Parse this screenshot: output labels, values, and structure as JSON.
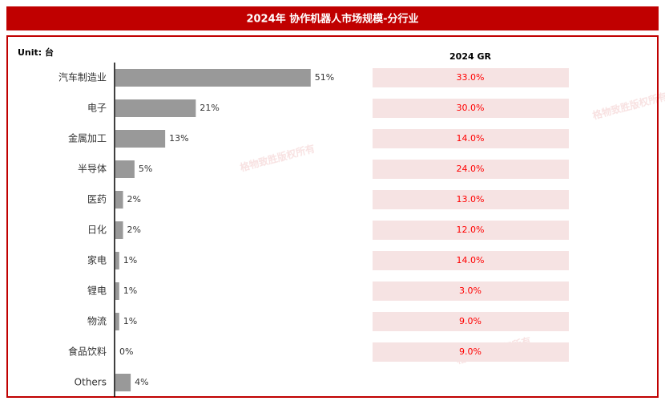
{
  "chart_data": {
    "type": "bar",
    "title": "2024年 协作机器人市场规模-分行业",
    "unit_label": "Unit: 台",
    "categories": [
      "汽车制造业",
      "电子",
      "金属加工",
      "半导体",
      "医药",
      "日化",
      "家电",
      "锂电",
      "物流",
      "食品饮料",
      "Others"
    ],
    "values": [
      51,
      21,
      13,
      5,
      2,
      2,
      1,
      1,
      1,
      0,
      4
    ],
    "value_labels": [
      "51%",
      "21%",
      "13%",
      "5%",
      "2%",
      "2%",
      "1%",
      "1%",
      "1%",
      "0%",
      "4%"
    ],
    "color": "#999999",
    "growth": {
      "title": "2024 GR",
      "values": [
        33.0,
        30.0,
        14.0,
        24.0,
        13.0,
        12.0,
        14.0,
        3.0,
        9.0,
        9.0
      ],
      "value_labels": [
        "33.0%",
        "30.0%",
        "14.0%",
        "24.0%",
        "13.0%",
        "12.0%",
        "14.0%",
        "3.0%",
        "9.0%",
        "9.0%"
      ],
      "color": "#ff0000"
    },
    "watermark": "格物致胜版权所有"
  }
}
